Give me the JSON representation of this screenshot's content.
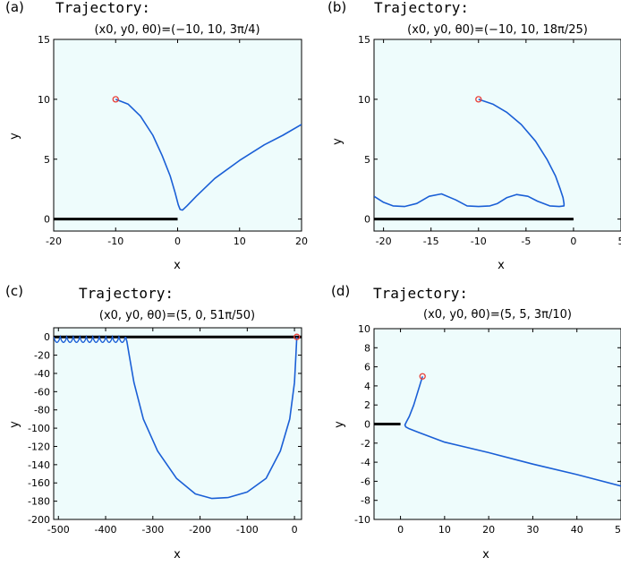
{
  "figure": {
    "background": "#ffffff",
    "plot_background": "#eefcfc",
    "curve_color": "#1a5fd6",
    "marker_color": "#e8403a",
    "wall_color": "#000000"
  },
  "chart_data": [
    {
      "id": "a",
      "panel_label": "(a)",
      "type": "line",
      "title": "Trajectory:",
      "subtitle": "(x0, y0, θ0)=(−10, 10, 3π/4)",
      "xlabel": "x",
      "ylabel": "y",
      "xlim": [
        -20,
        20
      ],
      "ylim": [
        -1,
        15
      ],
      "xticks": [
        -20,
        -10,
        0,
        10,
        20
      ],
      "xtick_labels": [
        "-20",
        "-10",
        "0",
        "10",
        "20"
      ],
      "yticks": [
        0,
        5,
        10,
        15
      ],
      "ytick_labels": [
        "0",
        "5",
        "10",
        "15"
      ],
      "grid": false,
      "start_point": [
        -10,
        10
      ],
      "wall": [
        [
          -20,
          0
        ],
        [
          0,
          0
        ]
      ],
      "series": [
        {
          "x": [
            -10,
            -8,
            -6,
            -4,
            -2.5,
            -1.2,
            -0.4,
            0.1,
            0.4,
            0.8,
            1.5,
            3,
            6,
            10,
            14,
            17,
            20
          ],
          "y": [
            10,
            9.6,
            8.6,
            7.0,
            5.3,
            3.6,
            2.2,
            1.2,
            0.8,
            0.75,
            1.1,
            1.9,
            3.4,
            4.9,
            6.2,
            7.0,
            7.9
          ]
        }
      ]
    },
    {
      "id": "b",
      "panel_label": "(b)",
      "type": "line",
      "title": "Trajectory:",
      "subtitle": "(x0, y0, θ0)=(−10, 10, 18π/25)",
      "xlabel": "x",
      "ylabel": "y",
      "xlim": [
        -21,
        5
      ],
      "ylim": [
        -1,
        15
      ],
      "xticks": [
        -20,
        -15,
        -10,
        -5,
        0,
        5
      ],
      "xtick_labels": [
        "-20",
        "-15",
        "-10",
        "-5",
        "0",
        "5"
      ],
      "yticks": [
        0,
        5,
        10,
        15
      ],
      "ytick_labels": [
        "0",
        "5",
        "10",
        "15"
      ],
      "grid": false,
      "start_point": [
        -10,
        10
      ],
      "wall": [
        [
          -21,
          0
        ],
        [
          0,
          0
        ]
      ],
      "series": [
        {
          "x": [
            -10,
            -8.5,
            -7,
            -5.5,
            -4,
            -2.8,
            -1.9,
            -1.4,
            -1.1,
            -1.0,
            -1.0,
            -1.5,
            -2.5,
            -3.8,
            -4.8,
            -6.0,
            -7.0,
            -8.0,
            -8.8,
            -10.0,
            -11.2,
            -12.4,
            -13.9,
            -15.2,
            -16.5,
            -17.8,
            -19.0,
            -20.0,
            -21.0
          ],
          "y": [
            10,
            9.6,
            8.9,
            7.9,
            6.5,
            5.0,
            3.6,
            2.5,
            1.8,
            1.3,
            1.1,
            1.05,
            1.1,
            1.5,
            1.9,
            2.05,
            1.8,
            1.3,
            1.1,
            1.05,
            1.1,
            1.6,
            2.1,
            1.9,
            1.3,
            1.05,
            1.1,
            1.4,
            1.9
          ]
        }
      ]
    },
    {
      "id": "c",
      "panel_label": "(c)",
      "type": "line",
      "title": "Trajectory:",
      "subtitle": "(x0, y0, θ0)=(5, 0, 51π/50)",
      "xlabel": "x",
      "ylabel": "y",
      "xlim": [
        -510,
        15
      ],
      "ylim": [
        -200,
        10
      ],
      "xticks": [
        -500,
        -400,
        -300,
        -200,
        -100,
        0
      ],
      "xtick_labels": [
        "-500",
        "-400",
        "-300",
        "-200",
        "-100",
        "0"
      ],
      "yticks": [
        0,
        -20,
        -40,
        -60,
        -80,
        -100,
        -120,
        -140,
        -160,
        -180,
        -200
      ],
      "ytick_labels": [
        "0",
        "-20",
        "-40",
        "-60",
        "-80",
        "-100",
        "-120",
        "-140",
        "-160",
        "-180",
        "-200"
      ],
      "grid": false,
      "start_point": [
        5,
        0
      ],
      "wall": [
        [
          -510,
          0
        ],
        [
          15,
          0
        ]
      ],
      "series": [
        {
          "x": [
            5,
            3,
            0,
            -10,
            -30,
            -60,
            -100,
            -140,
            -175,
            -210,
            -250,
            -290,
            -320,
            -340,
            -350,
            -355,
            -357,
            -358
          ],
          "y": [
            0,
            -20,
            -50,
            -90,
            -125,
            -155,
            -170,
            -176,
            -177,
            -172,
            -155,
            -125,
            -90,
            -50,
            -20,
            -5,
            -1,
            0
          ]
        },
        {
          "id": "scallops",
          "x_start": -358,
          "x_end": -510,
          "amplitude": 6,
          "count": 11
        }
      ]
    },
    {
      "id": "d",
      "panel_label": "(d)",
      "type": "line",
      "title": "Trajectory:",
      "subtitle": "(x0, y0, θ0)=(5, 5, 3π/10)",
      "xlabel": "x",
      "ylabel": "y",
      "xlim": [
        -6,
        50
      ],
      "ylim": [
        -10,
        10
      ],
      "xticks": [
        0,
        10,
        20,
        30,
        40,
        50
      ],
      "xtick_labels": [
        "0",
        "10",
        "20",
        "30",
        "40",
        "50"
      ],
      "yticks": [
        10,
        8,
        6,
        4,
        2,
        0,
        -2,
        -4,
        -6,
        -8,
        -10
      ],
      "ytick_labels": [
        "10",
        "8",
        "6",
        "4",
        "2",
        "0",
        "-2",
        "-4",
        "-6",
        "-8",
        "-10"
      ],
      "grid": false,
      "start_point": [
        5,
        5
      ],
      "wall": [
        [
          -6,
          0
        ],
        [
          0,
          0
        ]
      ],
      "series": [
        {
          "x": [
            5,
            4.0,
            3.0,
            2.0,
            1.3,
            1.0,
            1.2,
            2.0,
            4.0,
            10,
            20,
            30,
            40,
            50
          ],
          "y": [
            5,
            3.5,
            2.0,
            0.8,
            0.2,
            -0.1,
            -0.3,
            -0.5,
            -0.85,
            -1.9,
            -3.0,
            -4.2,
            -5.3,
            -6.5
          ]
        }
      ]
    }
  ]
}
